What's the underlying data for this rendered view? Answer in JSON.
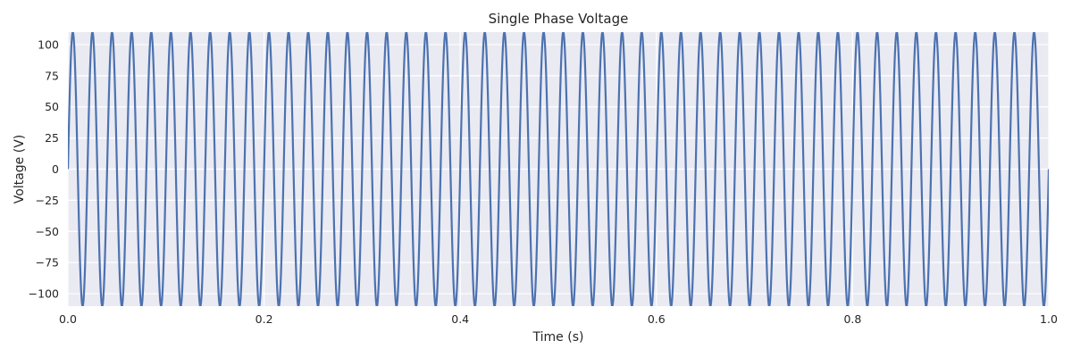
{
  "chart_data": {
    "type": "line",
    "title": "Single Phase Voltage",
    "xlabel": "Time (s)",
    "ylabel": "Voltage (V)",
    "xlim": [
      0,
      1
    ],
    "ylim": [
      -110,
      110
    ],
    "grid": true,
    "x_ticks": [
      0.0,
      0.2,
      0.4,
      0.6,
      0.8,
      1.0
    ],
    "x_tick_labels": [
      "0.0",
      "0.2",
      "0.4",
      "0.6",
      "0.8",
      "1.0"
    ],
    "y_ticks": [
      -100,
      -75,
      -50,
      -25,
      0,
      25,
      50,
      75,
      100
    ],
    "y_tick_labels": [
      "−100",
      "−75",
      "−50",
      "−25",
      "0",
      "25",
      "50",
      "75",
      "100"
    ],
    "series": [
      {
        "function": "amplitude * sin(2 * pi * frequency * t)",
        "amplitude": 110,
        "frequency": 50,
        "t_range": [
          0,
          1
        ],
        "color": "#4c72b0"
      }
    ]
  },
  "colors": {
    "plot_background": "#eaeaf2",
    "grid": "#ffffff",
    "line": "#4c72b0",
    "text": "#262626"
  }
}
